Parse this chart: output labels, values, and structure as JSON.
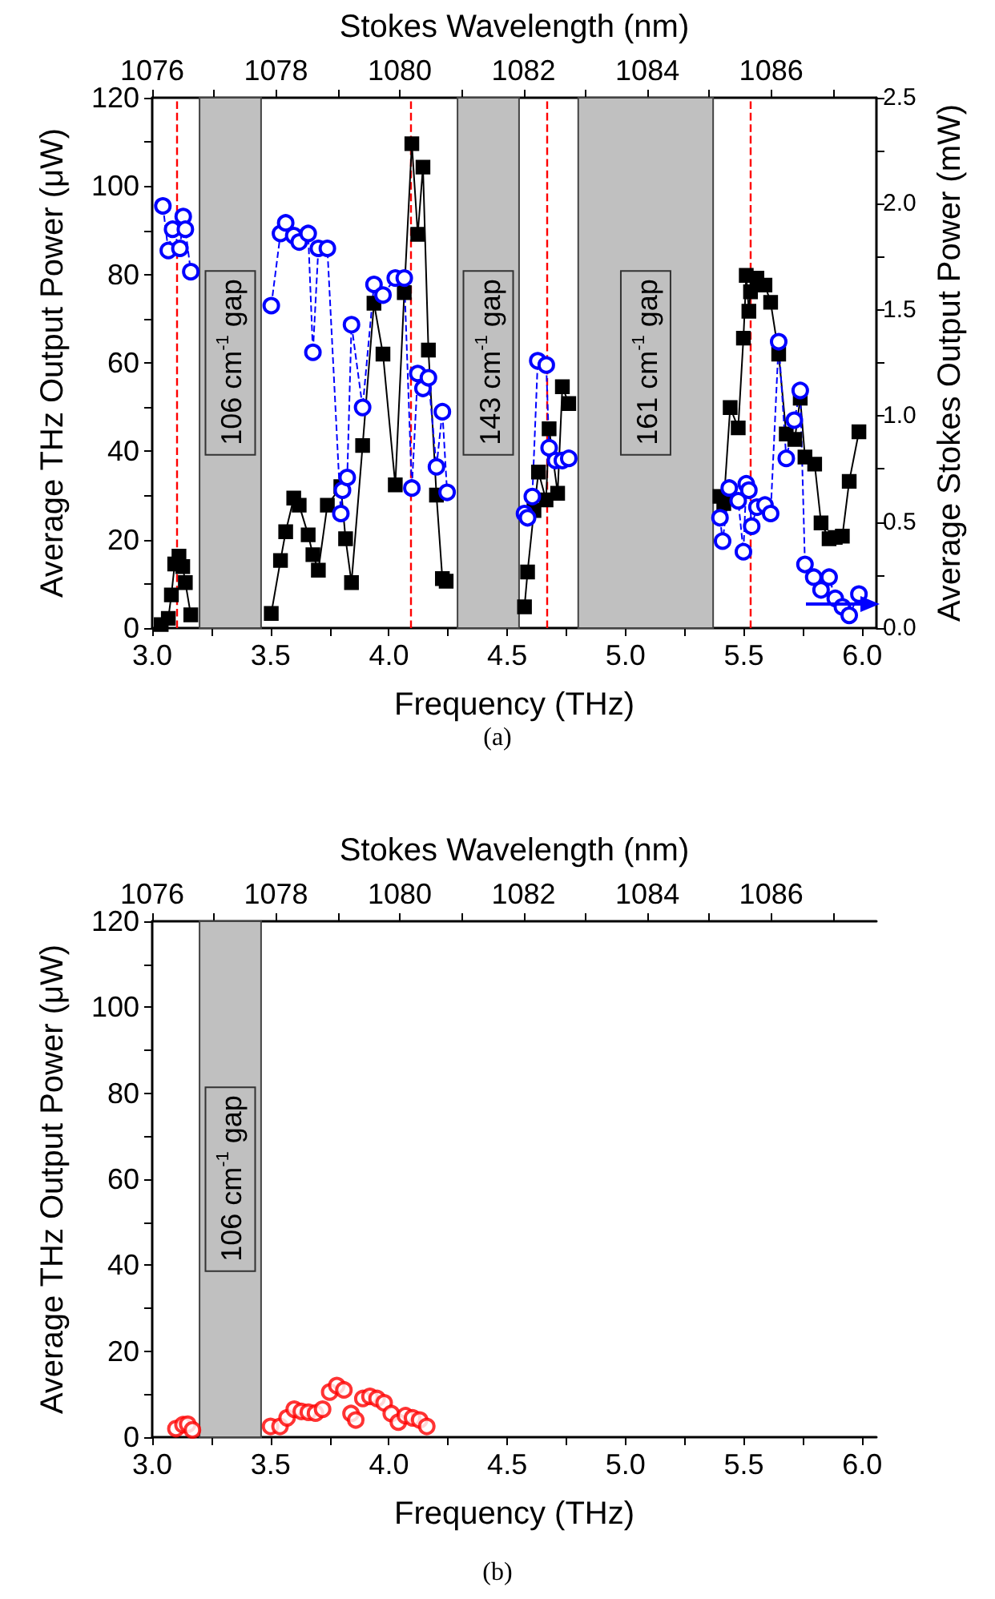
{
  "chart_data": [
    {
      "type": "line",
      "xlabel": "Frequency (THz)",
      "ylabel": "Average THz Output Power (μW)",
      "y2label": "Average Stokes Output Power (mW)",
      "x2label": "Stokes Wavelength (nm)",
      "xlim": [
        3.0,
        6.06
      ],
      "xticks": [
        {
          "value": 3,
          "label": "3.0"
        },
        {
          "value": 3.25,
          "label": null
        },
        {
          "value": 3.5,
          "label": "3.5"
        },
        {
          "value": 3.75,
          "label": null
        },
        {
          "value": 4,
          "label": "4.0"
        },
        {
          "value": 4.25,
          "label": null
        },
        {
          "value": 4.5,
          "label": "4.5"
        },
        {
          "value": 4.75,
          "label": null
        },
        {
          "value": 5,
          "label": "5.0"
        },
        {
          "value": 5.25,
          "label": null
        },
        {
          "value": 5.5,
          "label": "5.5"
        },
        {
          "value": 5.75,
          "label": null
        },
        {
          "value": 6,
          "label": "6.0"
        }
      ],
      "x2lim": [
        1076,
        1087.7
      ],
      "x2ticks": [
        1076,
        {
          "value": 1077,
          "label": null
        },
        1078,
        {
          "value": 1079,
          "label": null
        },
        1080,
        {
          "value": 1081,
          "label": null
        },
        1082,
        {
          "value": 1083,
          "label": null
        },
        1084,
        {
          "value": 1085,
          "label": null
        },
        1086,
        {
          "value": 1087,
          "label": null
        }
      ],
      "ylim": [
        0,
        120
      ],
      "yticks": [
        0,
        {
          "value": 10,
          "label": null
        },
        20,
        {
          "value": 30,
          "label": null
        },
        40,
        {
          "value": 50,
          "label": null
        },
        60,
        {
          "value": 70,
          "label": null
        },
        80,
        {
          "value": 90,
          "label": null
        },
        100,
        {
          "value": 110,
          "label": null
        },
        120
      ],
      "y2lim": [
        0,
        2.5
      ],
      "y2ticks": [
        {
          "value": 0,
          "label": "0.0"
        },
        {
          "value": 0.25,
          "label": null
        },
        {
          "value": 0.5,
          "label": "0.5"
        },
        {
          "value": 0.75,
          "label": null
        },
        {
          "value": 1,
          "label": "1.0"
        },
        {
          "value": 1.25,
          "label": null
        },
        {
          "value": 1.5,
          "label": "1.5"
        },
        {
          "value": 1.75,
          "label": null
        },
        {
          "value": 2,
          "label": "2.0"
        },
        {
          "value": 2.25,
          "label": null
        },
        {
          "value": 2.5,
          "label": "2.5"
        }
      ],
      "series": [
        {
          "color": "#000000",
          "marker": "square",
          "line_style": "solid",
          "x": [
            3.038,
            3.068,
            3.081,
            3.095,
            3.113,
            3.129,
            3.14,
            3.163,
            null,
            3.503,
            3.542,
            3.564,
            3.598,
            3.621,
            3.659,
            3.679,
            3.702,
            3.74,
            3.797,
            3.817,
            3.842,
            3.889,
            3.937,
            3.975,
            4.027,
            4.065,
            4.097,
            4.122,
            4.144,
            4.167,
            4.201,
            4.226,
            4.242,
            null,
            4.573,
            4.586,
            4.613,
            4.632,
            4.664,
            4.677,
            4.713,
            4.733,
            4.76,
            null,
            5.399,
            5.415,
            5.442,
            5.476,
            5.498,
            5.51,
            5.521,
            5.528,
            5.555,
            5.589,
            5.613,
            5.647,
            5.679,
            5.715,
            5.738,
            5.758,
            5.799,
            5.826,
            5.86,
            5.886,
            5.916,
            5.945,
            5.986
          ],
          "values": [
            0.8,
            2.2,
            7.5,
            14.5,
            16.3,
            13.9,
            10.3,
            3.0,
            null,
            3.3,
            15.3,
            21.8,
            29.4,
            27.8,
            21.1,
            16.6,
            13.1,
            27.8,
            32.0,
            20.2,
            10.3,
            41.3,
            73.5,
            62.0,
            32.4,
            75.9,
            109.6,
            89.1,
            104.3,
            62.9,
            30.1,
            11.2,
            10.6,
            null,
            4.8,
            12.7,
            26.6,
            35.3,
            29.0,
            45.1,
            30.5,
            54.6,
            50.8,
            null,
            29.8,
            28.2,
            49.9,
            45.3,
            65.6,
            79.8,
            71.7,
            76.1,
            79.2,
            77.6,
            73.7,
            62.0,
            43.9,
            42.7,
            52.0,
            38.7,
            37.1,
            23.8,
            20.2,
            20.5,
            20.8,
            33.2,
            44.4
          ]
        },
        {
          "color": "#0000ff",
          "marker": "circle",
          "line_style": "dashed",
          "axis": "y2",
          "x": [
            3.045,
            3.068,
            3.086,
            3.117,
            3.131,
            3.14,
            3.163,
            null,
            3.503,
            3.542,
            3.564,
            3.598,
            3.621,
            3.659,
            3.679,
            3.702,
            3.74,
            3.797,
            3.804,
            3.824,
            3.842,
            3.889,
            3.937,
            3.975,
            4.027,
            4.065,
            4.097,
            4.122,
            4.144,
            4.167,
            4.201,
            4.226,
            4.246,
            null,
            4.573,
            4.586,
            4.606,
            4.629,
            4.665,
            4.677,
            4.704,
            4.733,
            4.76,
            null,
            5.399,
            5.41,
            5.438,
            5.476,
            5.498,
            5.51,
            5.521,
            5.533,
            5.555,
            5.589,
            5.613,
            5.647,
            5.679,
            5.713,
            5.738,
            5.758,
            5.795,
            5.826,
            5.86,
            5.886,
            5.916,
            5.945,
            5.986
          ],
          "values": [
            1.99,
            1.78,
            1.88,
            1.79,
            1.94,
            1.88,
            1.68,
            null,
            1.52,
            1.86,
            1.91,
            1.85,
            1.82,
            1.86,
            1.3,
            1.79,
            1.79,
            0.54,
            0.65,
            0.71,
            1.43,
            1.04,
            1.62,
            1.57,
            1.65,
            1.65,
            0.66,
            1.2,
            1.13,
            1.18,
            0.76,
            1.02,
            0.64,
            null,
            0.54,
            0.52,
            0.62,
            1.26,
            1.24,
            0.85,
            0.79,
            0.79,
            0.8,
            null,
            0.52,
            0.41,
            0.66,
            0.6,
            0.36,
            0.68,
            0.65,
            0.48,
            0.57,
            0.58,
            0.54,
            1.35,
            0.8,
            0.98,
            1.12,
            0.3,
            0.24,
            0.18,
            0.24,
            0.14,
            0.1,
            0.06,
            0.16
          ]
        }
      ],
      "bands": [
        {
          "axis": "x",
          "from": 3.2,
          "to": 3.46,
          "label": "106 cm$^{-1}$ gap",
          "color": "#c0c0c0"
        },
        {
          "axis": "x",
          "from": 4.29,
          "to": 4.55,
          "label": "143 cm$^{-1}$ gap",
          "color": "#c0c0c0"
        },
        {
          "axis": "x",
          "from": 4.8,
          "to": 5.37,
          "label": "161 cm$^{-1}$ gap",
          "color": "#c0c0c0"
        }
      ],
      "ref_lines": [
        {
          "axis": "x",
          "value": 3.1,
          "color": "#ff0000",
          "line_style": "dashed"
        },
        {
          "axis": "x",
          "value": 4.09,
          "color": "#ff0000",
          "line_style": "dashed"
        },
        {
          "axis": "x",
          "value": 4.67,
          "color": "#ff0000",
          "line_style": "dashed"
        },
        {
          "axis": "x",
          "value": 5.53,
          "color": "#ff0000",
          "line_style": "dashed"
        }
      ],
      "annotations": [
        "(a)"
      ]
    },
    {
      "type": "scatter",
      "xlabel": "Frequency (THz)",
      "ylabel": "Average THz Output Power (μW)",
      "x2label": "Stokes Wavelength (nm)",
      "xlim": [
        3.0,
        6.06
      ],
      "xticks": [
        {
          "value": 3,
          "label": "3.0"
        },
        {
          "value": 3.25,
          "label": null
        },
        {
          "value": 3.5,
          "label": "3.5"
        },
        {
          "value": 3.75,
          "label": null
        },
        {
          "value": 4,
          "label": "4.0"
        },
        {
          "value": 4.25,
          "label": null
        },
        {
          "value": 4.5,
          "label": "4.5"
        },
        {
          "value": 4.75,
          "label": null
        },
        {
          "value": 5,
          "label": "5.0"
        },
        {
          "value": 5.25,
          "label": null
        },
        {
          "value": 5.5,
          "label": "5.5"
        },
        {
          "value": 5.75,
          "label": null
        },
        {
          "value": 6,
          "label": "6.0"
        }
      ],
      "x2lim": [
        1076,
        1087.7
      ],
      "x2ticks": [
        1076,
        {
          "value": 1077,
          "label": null
        },
        1078,
        {
          "value": 1079,
          "label": null
        },
        1080,
        {
          "value": 1081,
          "label": null
        },
        1082,
        {
          "value": 1083,
          "label": null
        },
        1084,
        {
          "value": 1085,
          "label": null
        },
        1086,
        {
          "value": 1087,
          "label": null
        }
      ],
      "ylim": [
        0,
        120
      ],
      "yticks": [
        0,
        {
          "value": 10,
          "label": null
        },
        20,
        {
          "value": 30,
          "label": null
        },
        40,
        {
          "value": 50,
          "label": null
        },
        60,
        {
          "value": 70,
          "label": null
        },
        80,
        {
          "value": 90,
          "label": null
        },
        100,
        {
          "value": 110,
          "label": null
        },
        120
      ],
      "marker": "circle",
      "series": [
        {
          "color": "#ff0000",
          "x": [
            3.1,
            3.13,
            3.15,
            3.17,
            3.5,
            3.54,
            3.57,
            3.6,
            3.63,
            3.66,
            3.69,
            3.72,
            3.75,
            3.78,
            3.81,
            3.84,
            3.86,
            3.89,
            3.92,
            3.95,
            3.98,
            4.01,
            4.04,
            4.07,
            4.1,
            4.13,
            4.16
          ],
          "values": [
            2.0,
            2.9,
            3.0,
            1.7,
            2.5,
            2.5,
            4.5,
            6.5,
            6.0,
            5.8,
            5.6,
            6.5,
            10.5,
            12.0,
            11.0,
            5.5,
            4.0,
            9.0,
            9.5,
            9.0,
            8.0,
            5.5,
            3.5,
            5.0,
            4.5,
            4.0,
            2.5
          ]
        }
      ],
      "bands": [
        {
          "axis": "x",
          "from": 3.2,
          "to": 3.46,
          "label": "106 cm$^{-1}$ gap",
          "color": "#c0c0c0"
        }
      ],
      "annotations": [
        "(b)"
      ]
    }
  ]
}
